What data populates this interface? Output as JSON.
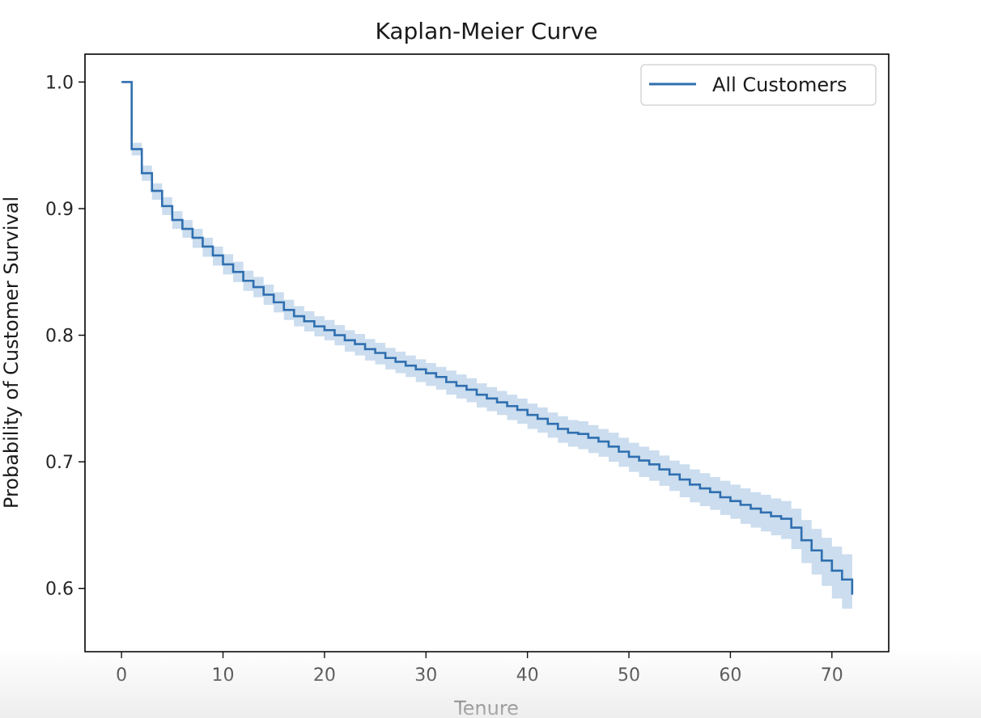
{
  "chart_data": {
    "type": "line",
    "step": true,
    "title": "Kaplan-Meier Curve",
    "xlabel": "Tenure",
    "ylabel": "Probability of Customer Survival",
    "xlim": [
      -3.6,
      75.6
    ],
    "ylim": [
      0.55,
      1.022
    ],
    "xticks": [
      0,
      10,
      20,
      30,
      40,
      50,
      60,
      70
    ],
    "yticks": [
      0.6,
      0.7,
      0.8,
      0.9,
      1.0
    ],
    "xtick_labels": [
      "0",
      "10",
      "20",
      "30",
      "40",
      "50",
      "60",
      "70"
    ],
    "ytick_labels": [
      "0.6",
      "0.7",
      "0.8",
      "0.9",
      "1.0"
    ],
    "grid": false,
    "legend": {
      "placement": "top-right",
      "entries": [
        "All Customers"
      ]
    },
    "colors": {
      "line": "#2f6fb0",
      "band": "#a9c6e2"
    },
    "series": [
      {
        "name": "All Customers",
        "x": [
          0,
          1,
          2,
          3,
          4,
          5,
          6,
          7,
          8,
          9,
          10,
          11,
          12,
          13,
          14,
          15,
          16,
          17,
          18,
          19,
          20,
          21,
          22,
          23,
          24,
          25,
          26,
          27,
          28,
          29,
          30,
          31,
          32,
          33,
          34,
          35,
          36,
          37,
          38,
          39,
          40,
          41,
          42,
          43,
          44,
          45,
          46,
          47,
          48,
          49,
          50,
          51,
          52,
          53,
          54,
          55,
          56,
          57,
          58,
          59,
          60,
          61,
          62,
          63,
          64,
          65,
          66,
          67,
          68,
          69,
          70,
          71,
          72
        ],
        "y": [
          1.0,
          0.947,
          0.928,
          0.914,
          0.902,
          0.891,
          0.884,
          0.877,
          0.87,
          0.863,
          0.856,
          0.85,
          0.843,
          0.838,
          0.832,
          0.826,
          0.82,
          0.815,
          0.811,
          0.807,
          0.804,
          0.8,
          0.796,
          0.793,
          0.789,
          0.786,
          0.782,
          0.779,
          0.776,
          0.773,
          0.77,
          0.767,
          0.763,
          0.76,
          0.757,
          0.753,
          0.75,
          0.747,
          0.744,
          0.741,
          0.737,
          0.734,
          0.73,
          0.726,
          0.723,
          0.722,
          0.719,
          0.716,
          0.712,
          0.708,
          0.704,
          0.701,
          0.698,
          0.694,
          0.69,
          0.686,
          0.682,
          0.679,
          0.676,
          0.672,
          0.669,
          0.666,
          0.663,
          0.66,
          0.657,
          0.655,
          0.648,
          0.638,
          0.63,
          0.622,
          0.614,
          0.607,
          0.595
        ],
        "ci_lower": [
          1.0,
          0.942,
          0.922,
          0.907,
          0.895,
          0.884,
          0.877,
          0.869,
          0.862,
          0.855,
          0.848,
          0.842,
          0.835,
          0.83,
          0.824,
          0.818,
          0.812,
          0.807,
          0.803,
          0.799,
          0.796,
          0.792,
          0.787,
          0.784,
          0.78,
          0.777,
          0.773,
          0.77,
          0.767,
          0.763,
          0.76,
          0.757,
          0.753,
          0.75,
          0.747,
          0.743,
          0.74,
          0.737,
          0.733,
          0.73,
          0.726,
          0.723,
          0.719,
          0.715,
          0.712,
          0.71,
          0.707,
          0.704,
          0.7,
          0.696,
          0.692,
          0.688,
          0.685,
          0.681,
          0.677,
          0.672,
          0.668,
          0.665,
          0.662,
          0.658,
          0.655,
          0.651,
          0.648,
          0.645,
          0.642,
          0.639,
          0.631,
          0.62,
          0.611,
          0.602,
          0.592,
          0.584,
          0.572
        ],
        "ci_upper": [
          1.0,
          0.952,
          0.934,
          0.92,
          0.909,
          0.898,
          0.891,
          0.884,
          0.877,
          0.87,
          0.864,
          0.858,
          0.851,
          0.846,
          0.84,
          0.834,
          0.828,
          0.823,
          0.819,
          0.815,
          0.812,
          0.808,
          0.804,
          0.801,
          0.797,
          0.794,
          0.79,
          0.787,
          0.784,
          0.781,
          0.778,
          0.775,
          0.772,
          0.769,
          0.766,
          0.762,
          0.759,
          0.756,
          0.753,
          0.75,
          0.746,
          0.743,
          0.739,
          0.736,
          0.733,
          0.732,
          0.729,
          0.726,
          0.723,
          0.719,
          0.715,
          0.712,
          0.709,
          0.705,
          0.701,
          0.698,
          0.694,
          0.691,
          0.688,
          0.685,
          0.682,
          0.679,
          0.676,
          0.674,
          0.671,
          0.669,
          0.663,
          0.654,
          0.647,
          0.64,
          0.633,
          0.627,
          0.617
        ]
      }
    ]
  }
}
